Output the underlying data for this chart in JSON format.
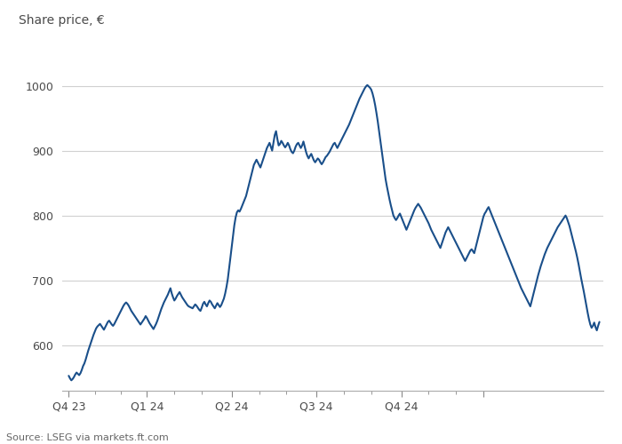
{
  "title": "Share price, €",
  "source": "Source: LSEG via markets.ft.com",
  "line_color": "#1a4f8a",
  "background_color": "#ffffff",
  "grid_color": "#d0d0d0",
  "title_color": "#4a4a4a",
  "tick_color": "#4a4a4a",
  "ylim": [
    530,
    1050
  ],
  "yticks": [
    600,
    700,
    800,
    900,
    1000
  ],
  "data": [
    553,
    549,
    546,
    548,
    551,
    555,
    558,
    556,
    554,
    557,
    562,
    568,
    572,
    578,
    585,
    592,
    598,
    604,
    610,
    616,
    621,
    626,
    629,
    631,
    633,
    630,
    627,
    624,
    628,
    632,
    636,
    638,
    635,
    632,
    630,
    633,
    637,
    641,
    645,
    649,
    653,
    657,
    661,
    664,
    666,
    664,
    661,
    657,
    653,
    650,
    647,
    644,
    641,
    638,
    635,
    632,
    635,
    638,
    641,
    645,
    642,
    638,
    634,
    631,
    628,
    625,
    629,
    633,
    638,
    644,
    650,
    656,
    661,
    666,
    670,
    674,
    678,
    683,
    688,
    680,
    674,
    669,
    672,
    676,
    679,
    682,
    678,
    674,
    671,
    668,
    665,
    662,
    660,
    659,
    658,
    657,
    660,
    663,
    661,
    658,
    655,
    653,
    658,
    664,
    667,
    663,
    660,
    665,
    669,
    667,
    663,
    660,
    657,
    661,
    665,
    662,
    659,
    662,
    667,
    672,
    680,
    690,
    702,
    718,
    735,
    752,
    770,
    785,
    797,
    805,
    808,
    806,
    810,
    815,
    820,
    825,
    830,
    838,
    846,
    854,
    862,
    870,
    878,
    882,
    886,
    882,
    878,
    874,
    880,
    886,
    892,
    898,
    904,
    908,
    912,
    906,
    900,
    912,
    924,
    930,
    918,
    908,
    910,
    915,
    912,
    908,
    905,
    908,
    912,
    908,
    902,
    898,
    896,
    900,
    906,
    910,
    912,
    908,
    904,
    908,
    914,
    906,
    898,
    892,
    888,
    892,
    895,
    890,
    885,
    882,
    885,
    888,
    886,
    882,
    879,
    882,
    886,
    890,
    892,
    895,
    898,
    902,
    906,
    910,
    912,
    908,
    904,
    908,
    912,
    916,
    920,
    924,
    928,
    932,
    936,
    940,
    945,
    950,
    955,
    960,
    965,
    970,
    975,
    980,
    984,
    988,
    992,
    996,
    999,
    1001,
    999,
    997,
    994,
    988,
    980,
    970,
    958,
    945,
    930,
    915,
    900,
    885,
    870,
    856,
    845,
    835,
    825,
    816,
    808,
    800,
    796,
    793,
    796,
    800,
    803,
    798,
    793,
    788,
    783,
    778,
    783,
    788,
    793,
    798,
    803,
    808,
    812,
    815,
    818,
    815,
    812,
    808,
    804,
    800,
    796,
    792,
    788,
    783,
    778,
    774,
    770,
    766,
    762,
    758,
    754,
    750,
    756,
    762,
    768,
    774,
    778,
    782,
    778,
    774,
    770,
    766,
    762,
    758,
    754,
    750,
    746,
    742,
    738,
    734,
    730,
    734,
    738,
    742,
    746,
    748,
    745,
    742,
    750,
    758,
    766,
    774,
    782,
    790,
    798,
    803,
    806,
    810,
    813,
    808,
    803,
    798,
    793,
    788,
    783,
    778,
    773,
    768,
    763,
    758,
    753,
    748,
    743,
    738,
    733,
    728,
    723,
    718,
    713,
    708,
    703,
    698,
    693,
    688,
    684,
    680,
    676,
    672,
    668,
    664,
    660,
    668,
    676,
    684,
    692,
    700,
    708,
    715,
    722,
    728,
    734,
    740,
    745,
    750,
    754,
    758,
    762,
    766,
    770,
    774,
    778,
    782,
    785,
    788,
    791,
    794,
    797,
    800,
    796,
    790,
    784,
    776,
    768,
    760,
    752,
    744,
    735,
    725,
    714,
    703,
    693,
    683,
    672,
    661,
    650,
    640,
    632,
    627,
    630,
    635,
    628,
    623,
    630,
    636
  ]
}
